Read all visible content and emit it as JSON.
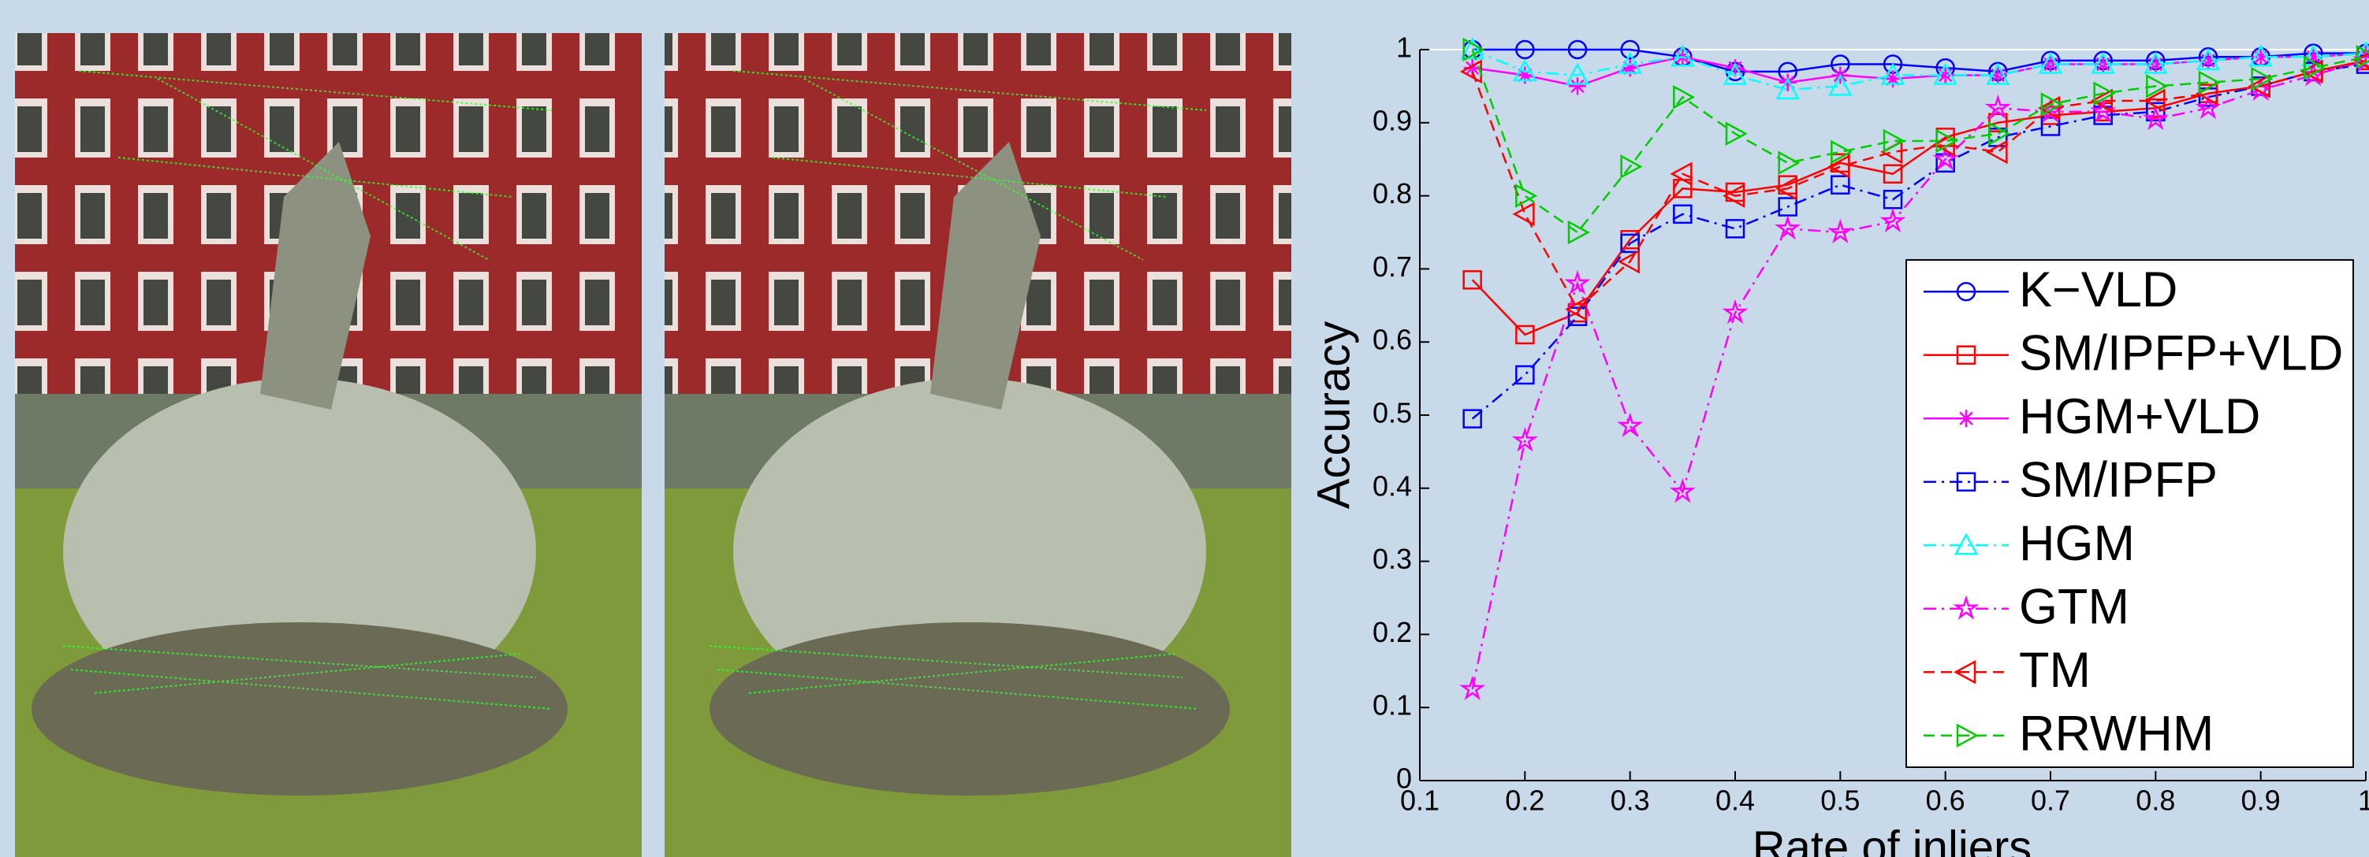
{
  "chart_data": {
    "type": "line",
    "ylabel": "Accuracy",
    "xlabel": "Rate of inliers",
    "x": [
      0.15,
      0.2,
      0.25,
      0.3,
      0.35,
      0.4,
      0.45,
      0.5,
      0.55,
      0.6,
      0.65,
      0.7,
      0.75,
      0.8,
      0.85,
      0.9,
      0.95,
      1.0
    ],
    "xlim": [
      0.1,
      1
    ],
    "ylim": [
      0,
      1
    ],
    "xticks": [
      0.1,
      0.2,
      0.3,
      0.4,
      0.5,
      0.6,
      0.7,
      0.8,
      0.9,
      1
    ],
    "yticks": [
      0,
      0.1,
      0.2,
      0.3,
      0.4,
      0.5,
      0.6,
      0.7,
      0.8,
      0.9,
      1
    ],
    "legend": "right",
    "series": [
      {
        "name": "K−VLD",
        "color": "#0000ff",
        "marker": "circle",
        "dash": "solid",
        "values": [
          1,
          1,
          1,
          1,
          0.99,
          0.97,
          0.97,
          0.98,
          0.98,
          0.975,
          0.97,
          0.985,
          0.985,
          0.985,
          0.99,
          0.99,
          0.995,
          0.995
        ]
      },
      {
        "name": "SM/IPFP+VLD",
        "color": "#ff0000",
        "marker": "square",
        "dash": "solid",
        "values": [
          0.685,
          0.61,
          0.64,
          0.74,
          0.81,
          0.805,
          0.815,
          0.845,
          0.83,
          0.88,
          0.9,
          0.91,
          0.915,
          0.92,
          0.94,
          0.95,
          0.97,
          0.985
        ]
      },
      {
        "name": "HGM+VLD",
        "color": "#ff00ff",
        "marker": "asterisk",
        "dash": "solid",
        "values": [
          0.975,
          0.965,
          0.95,
          0.975,
          0.99,
          0.975,
          0.955,
          0.965,
          0.96,
          0.965,
          0.965,
          0.98,
          0.98,
          0.98,
          0.985,
          0.99,
          0.99,
          0.995
        ]
      },
      {
        "name": "SM/IPFP",
        "color": "#0000ff",
        "marker": "square",
        "dash": "dashdot",
        "values": [
          0.495,
          0.555,
          0.635,
          0.735,
          0.775,
          0.755,
          0.785,
          0.815,
          0.795,
          0.845,
          0.88,
          0.895,
          0.91,
          0.915,
          0.935,
          0.95,
          0.97,
          0.98
        ]
      },
      {
        "name": "HGM",
        "color": "#00ffff",
        "marker": "triangle",
        "dash": "dashdot",
        "values": [
          1,
          0.97,
          0.965,
          0.98,
          0.99,
          0.965,
          0.945,
          0.95,
          0.965,
          0.965,
          0.965,
          0.98,
          0.98,
          0.98,
          0.985,
          0.99,
          0.99,
          0.995
        ]
      },
      {
        "name": "GTM",
        "color": "#ff00ff",
        "marker": "pentagram",
        "dash": "dashdot",
        "values": [
          0.125,
          0.465,
          0.68,
          0.485,
          0.395,
          0.64,
          0.755,
          0.75,
          0.765,
          0.85,
          0.92,
          0.915,
          0.915,
          0.905,
          0.92,
          0.945,
          0.965,
          0.985
        ]
      },
      {
        "name": "TM",
        "color": "#ff0000",
        "marker": "triangle-left",
        "dash": "dashed",
        "values": [
          0.97,
          0.775,
          0.645,
          0.71,
          0.83,
          0.8,
          0.81,
          0.84,
          0.86,
          0.87,
          0.86,
          0.92,
          0.93,
          0.93,
          0.94,
          0.95,
          0.97,
          0.985
        ]
      },
      {
        "name": "RRWHM",
        "color": "#00cc00",
        "marker": "triangle-right",
        "dash": "dashed",
        "values": [
          1,
          0.8,
          0.75,
          0.84,
          0.935,
          0.885,
          0.845,
          0.86,
          0.875,
          0.875,
          0.885,
          0.925,
          0.94,
          0.95,
          0.955,
          0.96,
          0.975,
          0.99
        ]
      }
    ]
  }
}
